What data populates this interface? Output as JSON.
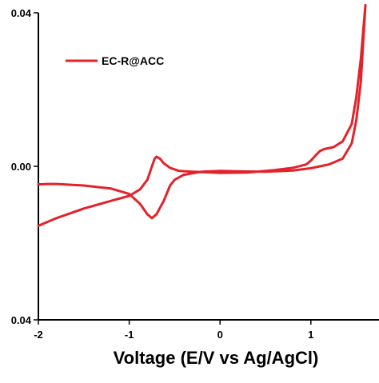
{
  "chart_data": {
    "type": "line",
    "title": "",
    "xlabel": "Voltage (E/V vs Ag/AgCl)",
    "ylabel": "",
    "xlim": [
      -2.0,
      1.75
    ],
    "ylim": [
      -0.04,
      0.04
    ],
    "x_ticks": [
      -2,
      -1,
      0,
      1
    ],
    "x_tick_labels": [
      "-2",
      "-1",
      "0",
      "1"
    ],
    "y_ticks": [
      -0.04,
      0.0,
      0.04
    ],
    "y_tick_labels": [
      "0.04",
      "0.00",
      "0.04"
    ],
    "grid": false,
    "legend_position": "top-left",
    "series": [
      {
        "name": "EC-R@ACC",
        "color": "#e3232c",
        "x": [
          -2.0,
          -1.8,
          -1.5,
          -1.2,
          -1.0,
          -0.88,
          -0.8,
          -0.75,
          -0.72,
          -0.7,
          -0.66,
          -0.62,
          -0.55,
          -0.45,
          -0.3,
          0.0,
          0.3,
          0.6,
          0.8,
          0.95,
          1.0,
          1.05,
          1.1,
          1.15,
          1.25,
          1.35,
          1.45,
          1.5,
          1.55,
          1.6,
          1.6,
          1.58,
          1.55,
          1.5,
          1.45,
          1.35,
          1.2,
          1.1,
          1.0,
          0.8,
          0.5,
          0.2,
          0.0,
          -0.2,
          -0.4,
          -0.5,
          -0.55,
          -0.62,
          -0.7,
          -0.75,
          -0.8,
          -0.88,
          -1.0,
          -1.2,
          -1.5,
          -1.8,
          -1.9,
          -2.0
        ],
        "y": [
          -0.0155,
          -0.0135,
          -0.011,
          -0.009,
          -0.0077,
          -0.006,
          -0.0035,
          0.0,
          0.002,
          0.0025,
          0.002,
          0.0008,
          -0.0004,
          -0.0012,
          -0.0014,
          -0.0017,
          -0.0016,
          -0.001,
          -0.0004,
          0.0005,
          0.0015,
          0.0028,
          0.004,
          0.0045,
          0.005,
          0.0065,
          0.011,
          0.018,
          0.028,
          0.042,
          0.042,
          0.034,
          0.022,
          0.012,
          0.006,
          0.002,
          0.0005,
          0.0,
          -0.0005,
          -0.0011,
          -0.0014,
          -0.0013,
          -0.0012,
          -0.0014,
          -0.0022,
          -0.0035,
          -0.005,
          -0.009,
          -0.0125,
          -0.0135,
          -0.0125,
          -0.0098,
          -0.0072,
          -0.0058,
          -0.005,
          -0.0046,
          -0.0046,
          -0.0047
        ]
      }
    ]
  }
}
